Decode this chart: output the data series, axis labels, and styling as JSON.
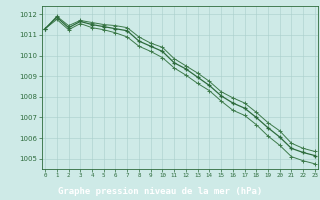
{
  "title": "Graphe pression niveau de la mer (hPa)",
  "background_color": "#ceeae7",
  "plot_bg_color": "#ceeae7",
  "label_bg_color": "#2d6b3c",
  "grid_color": "#aacfcc",
  "line_color_main": "#2d6b3c",
  "line_color_band": "#3d7a4a",
  "xlabel_color": "#ffffff",
  "tick_color": "#2d6b3c",
  "hours": [
    0,
    1,
    2,
    3,
    4,
    5,
    6,
    7,
    8,
    9,
    10,
    11,
    12,
    13,
    14,
    15,
    16,
    17,
    18,
    19,
    20,
    21,
    22,
    23
  ],
  "series_mid": [
    1011.3,
    1011.85,
    1011.35,
    1011.65,
    1011.5,
    1011.4,
    1011.3,
    1011.2,
    1010.7,
    1010.45,
    1010.2,
    1009.65,
    1009.35,
    1008.95,
    1008.55,
    1008.05,
    1007.7,
    1007.45,
    1007.0,
    1006.5,
    1006.05,
    1005.5,
    1005.3,
    1005.15
  ],
  "series_high": [
    1011.3,
    1011.9,
    1011.45,
    1011.7,
    1011.6,
    1011.5,
    1011.45,
    1011.35,
    1010.9,
    1010.6,
    1010.4,
    1009.85,
    1009.5,
    1009.15,
    1008.75,
    1008.25,
    1007.95,
    1007.7,
    1007.25,
    1006.75,
    1006.35,
    1005.75,
    1005.5,
    1005.35
  ],
  "series_low": [
    1011.3,
    1011.75,
    1011.25,
    1011.55,
    1011.35,
    1011.25,
    1011.1,
    1010.9,
    1010.45,
    1010.2,
    1009.9,
    1009.4,
    1009.05,
    1008.65,
    1008.3,
    1007.8,
    1007.35,
    1007.1,
    1006.65,
    1006.1,
    1005.65,
    1005.1,
    1004.9,
    1004.75
  ],
  "ylim": [
    1004.5,
    1012.4
  ],
  "yticks": [
    1005,
    1006,
    1007,
    1008,
    1009,
    1010,
    1011,
    1012
  ]
}
